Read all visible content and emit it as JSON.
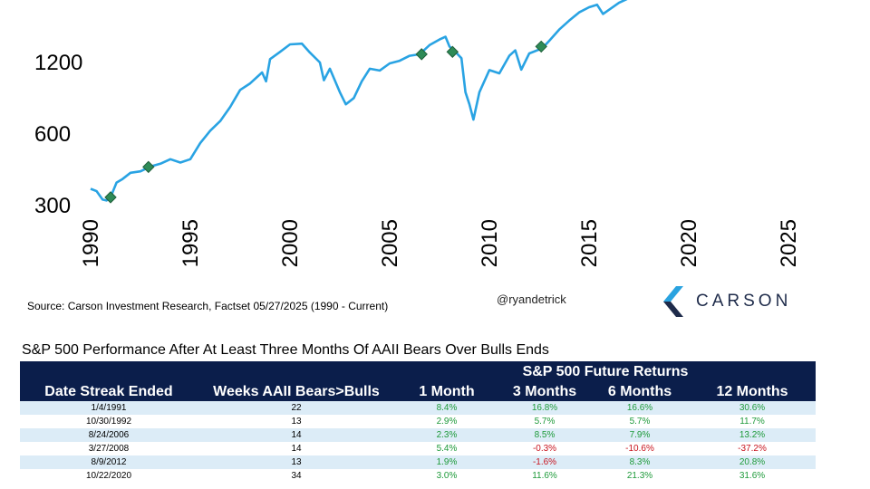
{
  "chart_data": {
    "type": "line",
    "title": "",
    "xlabel": "",
    "ylabel": "",
    "y_scale": "log",
    "xlim": [
      1990,
      2025
    ],
    "ylim": [
      240,
      2200
    ],
    "x_ticks": [
      "1990",
      "1995",
      "2000",
      "2005",
      "2010",
      "2015",
      "2020",
      "2025"
    ],
    "y_ticks": [
      "300",
      "600",
      "1200"
    ],
    "grid": false,
    "legend": "none",
    "colors": {
      "line": "#29a3e3",
      "marker": "#2e8b57"
    },
    "series": [
      {
        "points": [
          [
            1990.0,
            353
          ],
          [
            1990.3,
            345
          ],
          [
            1990.6,
            318
          ],
          [
            1990.8,
            315
          ],
          [
            1991.0,
            325
          ],
          [
            1991.3,
            375
          ],
          [
            1991.6,
            388
          ],
          [
            1992.0,
            412
          ],
          [
            1992.5,
            418
          ],
          [
            1993.0,
            438
          ],
          [
            1993.5,
            450
          ],
          [
            1994.0,
            470
          ],
          [
            1994.5,
            455
          ],
          [
            1995.0,
            470
          ],
          [
            1995.5,
            550
          ],
          [
            1996.0,
            620
          ],
          [
            1996.5,
            680
          ],
          [
            1997.0,
            780
          ],
          [
            1997.5,
            920
          ],
          [
            1998.0,
            980
          ],
          [
            1998.6,
            1090
          ],
          [
            1998.8,
            1000
          ],
          [
            1999.0,
            1240
          ],
          [
            1999.5,
            1330
          ],
          [
            2000.0,
            1430
          ],
          [
            2000.6,
            1440
          ],
          [
            2001.0,
            1320
          ],
          [
            2001.5,
            1200
          ],
          [
            2001.7,
            1010
          ],
          [
            2002.0,
            1130
          ],
          [
            2002.5,
            900
          ],
          [
            2002.8,
            800
          ],
          [
            2003.2,
            850
          ],
          [
            2003.6,
            1000
          ],
          [
            2004.0,
            1130
          ],
          [
            2004.5,
            1110
          ],
          [
            2005.0,
            1190
          ],
          [
            2005.5,
            1220
          ],
          [
            2006.0,
            1280
          ],
          [
            2006.5,
            1300
          ],
          [
            2007.0,
            1420
          ],
          [
            2007.5,
            1500
          ],
          [
            2007.8,
            1540
          ],
          [
            2008.0,
            1400
          ],
          [
            2008.3,
            1330
          ],
          [
            2008.6,
            1250
          ],
          [
            2008.8,
            900
          ],
          [
            2009.0,
            800
          ],
          [
            2009.2,
            690
          ],
          [
            2009.5,
            900
          ],
          [
            2010.0,
            1115
          ],
          [
            2010.5,
            1080
          ],
          [
            2011.0,
            1280
          ],
          [
            2011.3,
            1350
          ],
          [
            2011.6,
            1120
          ],
          [
            2012.0,
            1310
          ],
          [
            2012.5,
            1360
          ],
          [
            2012.8,
            1420
          ],
          [
            2013.0,
            1480
          ],
          [
            2013.5,
            1650
          ],
          [
            2014.0,
            1800
          ],
          [
            2014.5,
            1950
          ],
          [
            2015.0,
            2050
          ],
          [
            2015.4,
            2100
          ],
          [
            2015.7,
            1920
          ],
          [
            2016.0,
            2000
          ],
          [
            2016.5,
            2140
          ],
          [
            2016.9,
            2220
          ]
        ]
      }
    ],
    "markers": [
      [
        1991.0,
        325
      ],
      [
        1992.9,
        436
      ],
      [
        2006.6,
        1300
      ],
      [
        2008.15,
        1330
      ],
      [
        2012.6,
        1400
      ]
    ]
  },
  "source_note": "Source: Carson Investment Research, Factset 05/27/2025 (1990 - Current)",
  "handle": "@ryandetrick",
  "brand": "CARSON",
  "table": {
    "title": "S&P 500 Performance After At Least Three Months Of AAII Bears Over Bulls Ends",
    "super_header": "S&P 500 Future Returns",
    "columns": [
      "Date Streak Ended",
      "Weeks AAII Bears>Bulls",
      "1 Month",
      "3 Months",
      "6 Months",
      "12 Months"
    ],
    "rows": [
      [
        "1/4/1991",
        "22",
        "8.4%",
        "16.8%",
        "16.6%",
        "30.6%"
      ],
      [
        "10/30/1992",
        "13",
        "2.9%",
        "5.7%",
        "5.7%",
        "11.7%"
      ],
      [
        "8/24/2006",
        "14",
        "2.3%",
        "8.5%",
        "7.9%",
        "13.2%"
      ],
      [
        "3/27/2008",
        "14",
        "5.4%",
        "-0.3%",
        "-10.6%",
        "-37.2%"
      ],
      [
        "8/9/2012",
        "13",
        "1.9%",
        "-1.6%",
        "8.3%",
        "20.8%"
      ],
      [
        "10/22/2020",
        "34",
        "3.0%",
        "11.6%",
        "21.3%",
        "31.6%"
      ]
    ]
  }
}
